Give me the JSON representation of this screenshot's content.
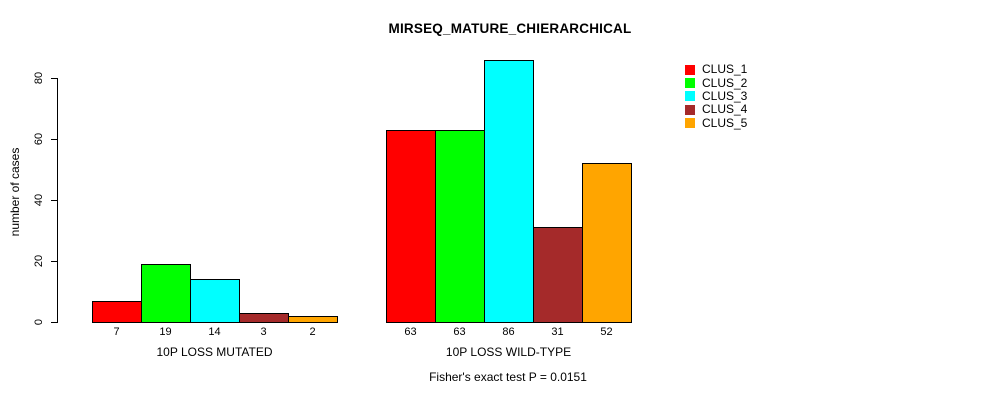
{
  "chart_data": {
    "type": "bar",
    "title": "MIRSEQ_MATURE_CHIERARCHICAL",
    "ylabel": "number of cases",
    "xlabel": "",
    "ylim": [
      0,
      86
    ],
    "yticks": [
      0,
      20,
      40,
      60,
      80
    ],
    "grid": false,
    "categories": [
      "10P LOSS MUTATED",
      "10P LOSS WILD-TYPE"
    ],
    "series": [
      {
        "name": "CLUS_1",
        "color": "#FF0000",
        "values": [
          7,
          63
        ]
      },
      {
        "name": "CLUS_2",
        "color": "#00FF00",
        "values": [
          19,
          63
        ]
      },
      {
        "name": "CLUS_3",
        "color": "#00FFFF",
        "values": [
          14,
          86
        ]
      },
      {
        "name": "CLUS_4",
        "color": "#A52A2A",
        "values": [
          3,
          31
        ]
      },
      {
        "name": "CLUS_5",
        "color": "#FFA500",
        "values": [
          2,
          52
        ]
      }
    ],
    "bar_value_labels": {
      "10P LOSS MUTATED": [
        7,
        19,
        14,
        3,
        2
      ],
      "10P LOSS WILD-TYPE": [
        63,
        63,
        86,
        31,
        52
      ]
    },
    "legend": {
      "position": "top-right",
      "items": [
        "CLUS_1",
        "CLUS_2",
        "CLUS_3",
        "CLUS_4",
        "CLUS_5"
      ]
    },
    "annotation": "Fisher's exact test P = 0.0151",
    "colors": {
      "bar_border": "#000000",
      "axis": "#000000",
      "background": "#FFFFFF"
    }
  }
}
